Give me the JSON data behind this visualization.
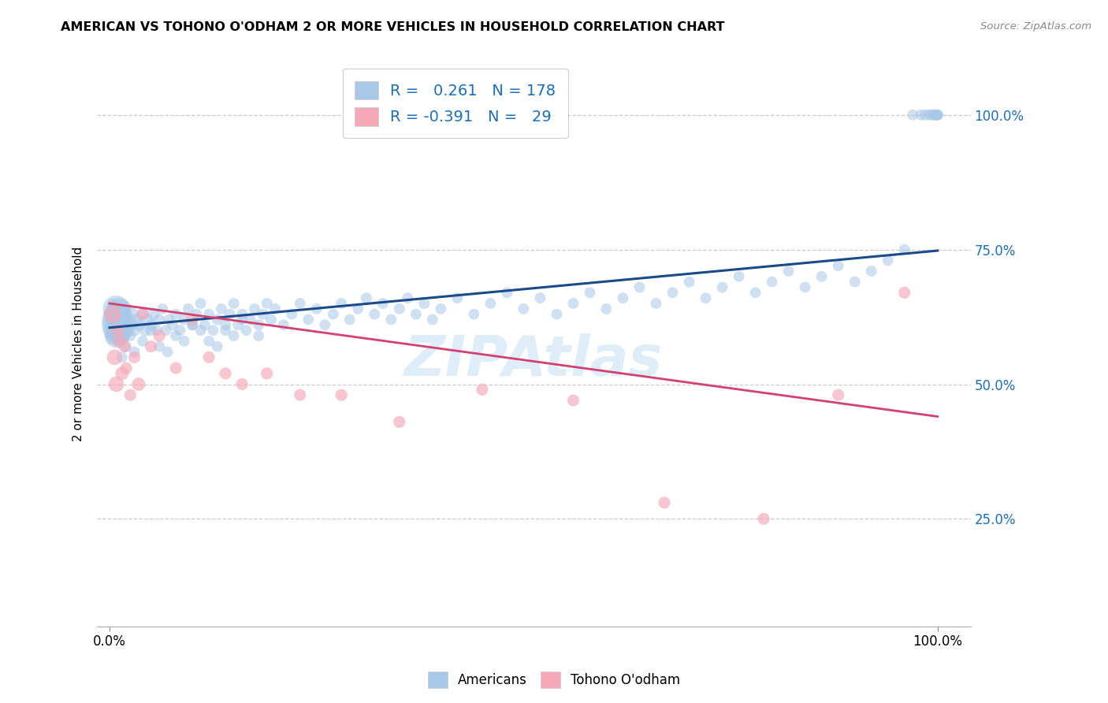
{
  "title": "AMERICAN VS TOHONO O'ODHAM 2 OR MORE VEHICLES IN HOUSEHOLD CORRELATION CHART",
  "source": "Source: ZipAtlas.com",
  "ylabel": "2 or more Vehicles in Household",
  "blue_color": "#a8c8e8",
  "pink_color": "#f4a8b8",
  "line_blue": "#1a4a8a",
  "line_pink": "#d44070",
  "ytick_color": "#1a6fbd",
  "watermark": "ZIPAtlas",
  "americans_x": [
    0.002,
    0.003,
    0.003,
    0.004,
    0.005,
    0.005,
    0.006,
    0.006,
    0.007,
    0.007,
    0.008,
    0.008,
    0.009,
    0.009,
    0.01,
    0.01,
    0.011,
    0.011,
    0.012,
    0.013,
    0.013,
    0.014,
    0.015,
    0.015,
    0.016,
    0.017,
    0.018,
    0.019,
    0.02,
    0.022,
    0.023,
    0.025,
    0.027,
    0.03,
    0.033,
    0.036,
    0.04,
    0.043,
    0.046,
    0.05,
    0.053,
    0.057,
    0.06,
    0.064,
    0.068,
    0.072,
    0.076,
    0.08,
    0.085,
    0.09,
    0.095,
    0.1,
    0.105,
    0.11,
    0.115,
    0.12,
    0.125,
    0.13,
    0.135,
    0.14,
    0.145,
    0.15,
    0.155,
    0.16,
    0.165,
    0.17,
    0.175,
    0.18,
    0.185,
    0.19,
    0.195,
    0.2,
    0.21,
    0.22,
    0.23,
    0.24,
    0.25,
    0.26,
    0.27,
    0.28,
    0.29,
    0.3,
    0.31,
    0.32,
    0.33,
    0.34,
    0.35,
    0.36,
    0.37,
    0.38,
    0.39,
    0.4,
    0.42,
    0.44,
    0.46,
    0.48,
    0.5,
    0.52,
    0.54,
    0.56,
    0.58,
    0.6,
    0.62,
    0.64,
    0.66,
    0.68,
    0.7,
    0.72,
    0.74,
    0.76,
    0.78,
    0.8,
    0.82,
    0.84,
    0.86,
    0.88,
    0.9,
    0.92,
    0.94,
    0.96,
    0.97,
    0.98,
    0.985,
    0.99,
    0.993,
    0.996,
    0.998,
    1.0,
    1.0,
    1.0,
    0.015,
    0.02,
    0.025,
    0.03,
    0.04,
    0.05,
    0.06,
    0.08,
    0.1,
    0.12,
    0.14,
    0.16,
    0.18,
    0.07,
    0.09,
    0.11,
    0.13,
    0.15
  ],
  "americans_y": [
    0.62,
    0.6,
    0.65,
    0.63,
    0.61,
    0.64,
    0.59,
    0.63,
    0.6,
    0.62,
    0.61,
    0.64,
    0.59,
    0.62,
    0.6,
    0.63,
    0.61,
    0.64,
    0.59,
    0.62,
    0.6,
    0.63,
    0.61,
    0.64,
    0.59,
    0.62,
    0.6,
    0.63,
    0.61,
    0.6,
    0.62,
    0.61,
    0.63,
    0.6,
    0.62,
    0.61,
    0.63,
    0.6,
    0.62,
    0.61,
    0.63,
    0.6,
    0.62,
    0.64,
    0.6,
    0.62,
    0.61,
    0.63,
    0.6,
    0.62,
    0.64,
    0.61,
    0.63,
    0.65,
    0.61,
    0.63,
    0.6,
    0.62,
    0.64,
    0.61,
    0.63,
    0.65,
    0.61,
    0.63,
    0.6,
    0.62,
    0.64,
    0.61,
    0.63,
    0.65,
    0.62,
    0.64,
    0.61,
    0.63,
    0.65,
    0.62,
    0.64,
    0.61,
    0.63,
    0.65,
    0.62,
    0.64,
    0.66,
    0.63,
    0.65,
    0.62,
    0.64,
    0.66,
    0.63,
    0.65,
    0.62,
    0.64,
    0.66,
    0.63,
    0.65,
    0.67,
    0.64,
    0.66,
    0.63,
    0.65,
    0.67,
    0.64,
    0.66,
    0.68,
    0.65,
    0.67,
    0.69,
    0.66,
    0.68,
    0.7,
    0.67,
    0.69,
    0.71,
    0.68,
    0.7,
    0.72,
    0.69,
    0.71,
    0.73,
    0.75,
    1.0,
    1.0,
    1.0,
    1.0,
    1.0,
    1.0,
    1.0,
    1.0,
    1.0,
    1.0,
    0.55,
    0.57,
    0.59,
    0.56,
    0.58,
    0.6,
    0.57,
    0.59,
    0.61,
    0.58,
    0.6,
    0.62,
    0.59,
    0.56,
    0.58,
    0.6,
    0.57,
    0.59
  ],
  "americans_sizes": [
    80,
    100,
    80,
    100,
    150,
    200,
    300,
    400,
    500,
    600,
    700,
    600,
    500,
    400,
    500,
    400,
    300,
    400,
    300,
    400,
    300,
    300,
    250,
    300,
    200,
    200,
    200,
    150,
    150,
    150,
    150,
    150,
    150,
    120,
    120,
    120,
    120,
    120,
    120,
    120,
    120,
    100,
    100,
    100,
    100,
    100,
    100,
    100,
    100,
    100,
    100,
    100,
    100,
    100,
    100,
    100,
    100,
    100,
    100,
    100,
    100,
    100,
    100,
    100,
    100,
    100,
    100,
    100,
    100,
    100,
    100,
    100,
    100,
    100,
    100,
    100,
    100,
    100,
    100,
    100,
    100,
    100,
    100,
    100,
    100,
    100,
    100,
    100,
    100,
    100,
    100,
    100,
    100,
    100,
    100,
    100,
    100,
    100,
    100,
    100,
    100,
    100,
    100,
    100,
    100,
    100,
    100,
    100,
    100,
    100,
    100,
    100,
    100,
    100,
    100,
    100,
    100,
    100,
    100,
    100,
    100,
    100,
    100,
    100,
    100,
    100,
    100,
    100,
    100,
    100,
    100,
    100,
    100,
    100,
    100,
    100,
    100,
    100,
    100,
    100,
    100,
    100,
    100,
    100,
    100,
    100,
    100,
    100
  ],
  "tohono_x": [
    0.004,
    0.006,
    0.008,
    0.01,
    0.012,
    0.015,
    0.018,
    0.02,
    0.025,
    0.03,
    0.035,
    0.04,
    0.05,
    0.06,
    0.08,
    0.1,
    0.12,
    0.14,
    0.16,
    0.19,
    0.23,
    0.28,
    0.35,
    0.45,
    0.56,
    0.67,
    0.79,
    0.88,
    0.96
  ],
  "tohono_y": [
    0.63,
    0.55,
    0.5,
    0.6,
    0.58,
    0.52,
    0.57,
    0.53,
    0.48,
    0.55,
    0.5,
    0.63,
    0.57,
    0.59,
    0.53,
    0.62,
    0.55,
    0.52,
    0.5,
    0.52,
    0.48,
    0.48,
    0.43,
    0.49,
    0.47,
    0.28,
    0.25,
    0.48,
    0.67
  ],
  "tohono_sizes": [
    250,
    200,
    200,
    150,
    150,
    150,
    120,
    120,
    120,
    120,
    150,
    120,
    120,
    120,
    120,
    120,
    120,
    120,
    120,
    120,
    120,
    120,
    120,
    120,
    120,
    120,
    120,
    120,
    120
  ],
  "blue_line": [
    0.0,
    1.0,
    0.605,
    0.748
  ],
  "pink_line": [
    0.0,
    1.0,
    0.65,
    0.44
  ],
  "xlim": [
    -0.015,
    1.04
  ],
  "ylim": [
    0.05,
    1.1
  ],
  "yticks": [
    0.25,
    0.5,
    0.75,
    1.0
  ],
  "ytick_labels": [
    "25.0%",
    "50.0%",
    "75.0%",
    "100.0%"
  ],
  "xticks": [
    0.0,
    1.0
  ],
  "xtick_labels": [
    "0.0%",
    "100.0%"
  ]
}
